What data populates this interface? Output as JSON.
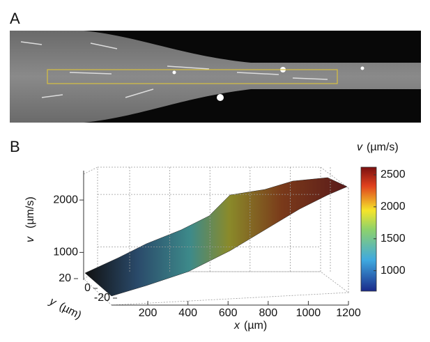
{
  "panel_a": {
    "label": "A"
  },
  "panel_b": {
    "label": "B",
    "x_axis": {
      "var": "x",
      "unit": "(µm)",
      "ticks": [
        200,
        400,
        600,
        800,
        1000,
        1200
      ],
      "lim": [
        40,
        1200
      ]
    },
    "y_axis": {
      "var": "y",
      "unit": "(µm)",
      "ticks": [
        20,
        0,
        -20
      ],
      "lim": [
        -20,
        20
      ]
    },
    "z_axis": {
      "var": "v",
      "unit": "(µm/s)",
      "ticks": [
        1000,
        2000
      ],
      "lim": [
        500,
        2600
      ]
    },
    "colorbar": {
      "var": "v",
      "unit": "(µm/s)",
      "ticks": [
        1000,
        1500,
        2000,
        2500
      ],
      "lim": [
        680,
        2620
      ]
    }
  }
}
